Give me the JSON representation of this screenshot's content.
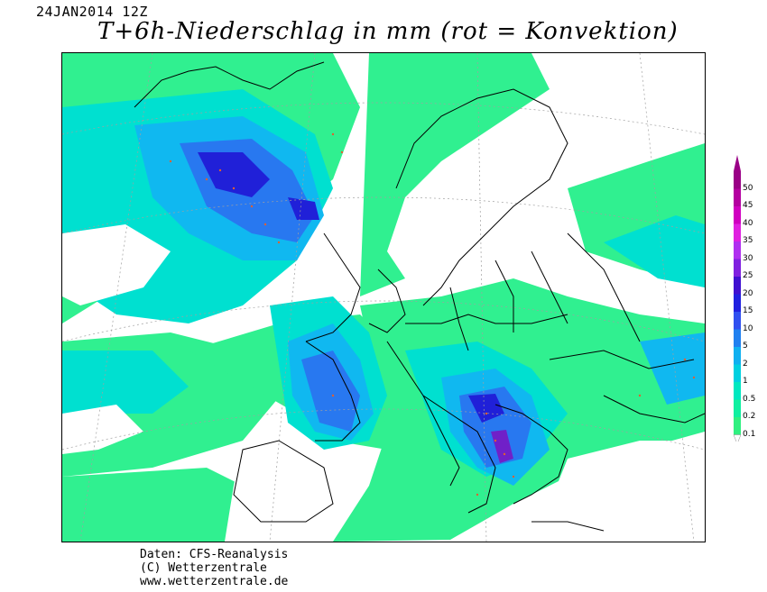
{
  "header": {
    "datestamp": "24JAN2014 12Z",
    "title": "T+6h-Niederschlag in mm (rot = Konvektion)"
  },
  "legend": {
    "levels": [
      "50",
      "45",
      "40",
      "35",
      "30",
      "25",
      "20",
      "15",
      "10",
      "5",
      "2",
      "1",
      "0.5",
      "0.2",
      "0.1"
    ],
    "colors": [
      "#9a0086",
      "#b400a0",
      "#d000c0",
      "#e020e0",
      "#b030f0",
      "#8020e0",
      "#4010d0",
      "#2020e0",
      "#3050f0",
      "#2080f0",
      "#10b0f0",
      "#00d0e0",
      "#00e8c0",
      "#10f0a0",
      "#30f080"
    ]
  },
  "credits": {
    "line1": "Daten: CFS-Reanalysis",
    "line2": "(C) Wetterzentrale",
    "line3": "www.wetterzentrale.de"
  },
  "palette": {
    "light": "#30f090",
    "mid": "#00e0d0",
    "cyan": "#10b8f0",
    "blue": "#2878f0",
    "deep": "#2020d8",
    "violet": "#7020c8",
    "land": "#000000"
  }
}
